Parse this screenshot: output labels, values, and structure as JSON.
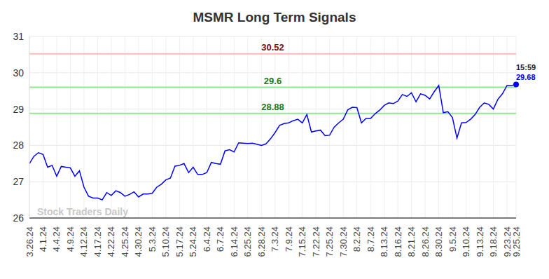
{
  "chart_data": {
    "type": "line",
    "title": "MSMR Long Term Signals",
    "watermark": "Stock Traders Daily",
    "last_label": "15:59",
    "color": "#0000ff",
    "grid": true,
    "categories": [
      "3.26.24",
      null,
      null,
      "4.1.24",
      null,
      null,
      "4.4.24",
      null,
      null,
      "4.9.24",
      null,
      null,
      "4.12.24",
      null,
      null,
      "4.17.24",
      null,
      null,
      "4.22.24",
      null,
      null,
      "4.25.24",
      null,
      null,
      "4.30.24",
      null,
      null,
      "5.3.24",
      null,
      null,
      "5.10.24",
      null,
      null,
      "5.17.24",
      null,
      null,
      "5.24.24",
      null,
      null,
      "6.4.24",
      null,
      null,
      "6.7.24",
      null,
      null,
      "6.14.24",
      null,
      null,
      "6.25.24",
      null,
      null,
      "6.28.24",
      null,
      null,
      "7.3.24",
      null,
      null,
      "7.9.24",
      null,
      null,
      "7.15.24",
      null,
      null,
      "7.22.24",
      null,
      null,
      "7.25.24",
      null,
      null,
      "7.30.24",
      null,
      null,
      "8.2.24",
      null,
      null,
      "8.7.24",
      null,
      null,
      "8.13.24",
      null,
      null,
      "8.16.24",
      null,
      null,
      "8.21.24",
      null,
      null,
      "8.26.24",
      null,
      null,
      "8.30.24",
      null,
      null,
      "9.5.24",
      null,
      null,
      "9.10.24",
      null,
      null,
      "9.13.24",
      null,
      null,
      "9.18.24",
      null,
      null,
      "9.23.24",
      null,
      "9.25.24"
    ],
    "values": [
      27.5,
      27.7,
      27.8,
      27.75,
      27.4,
      27.45,
      27.15,
      27.42,
      27.4,
      27.38,
      27.15,
      27.3,
      26.85,
      26.6,
      26.55,
      26.55,
      26.5,
      26.7,
      26.62,
      26.75,
      26.7,
      26.6,
      26.65,
      26.72,
      26.58,
      26.66,
      26.66,
      26.68,
      26.85,
      26.93,
      27.05,
      27.1,
      27.43,
      27.45,
      27.5,
      27.25,
      27.4,
      27.2,
      27.2,
      27.25,
      27.53,
      27.5,
      27.48,
      27.85,
      27.88,
      27.82,
      28.07,
      28.06,
      28.05,
      28.06,
      28.03,
      28.0,
      28.04,
      28.18,
      28.35,
      28.55,
      28.6,
      28.62,
      28.68,
      28.72,
      28.62,
      28.85,
      28.37,
      28.4,
      28.42,
      28.27,
      28.28,
      28.5,
      28.62,
      28.72,
      28.98,
      29.05,
      29.04,
      28.62,
      28.74,
      28.74,
      28.87,
      28.97,
      29.1,
      29.17,
      29.15,
      29.22,
      29.4,
      29.35,
      29.45,
      29.2,
      29.42,
      29.38,
      29.28,
      29.48,
      29.65,
      28.9,
      28.93,
      28.77,
      28.2,
      28.62,
      28.63,
      28.72,
      28.85,
      29.05,
      29.17,
      29.13,
      29.0,
      29.27,
      29.42,
      29.65,
      29.65,
      29.68
    ],
    "ylim": [
      26,
      31
    ],
    "yticks": [
      26,
      27,
      28,
      29,
      30,
      31
    ],
    "reference_lines": [
      {
        "value": 30.52,
        "color": "#ffb8b8",
        "label_color": "#7b0c0c"
      },
      {
        "value": 29.6,
        "color": "#8ee88e",
        "label_color": "#1a7a1a"
      },
      {
        "value": 28.88,
        "color": "#8ee88e",
        "label_color": "#1a7a1a"
      }
    ]
  }
}
